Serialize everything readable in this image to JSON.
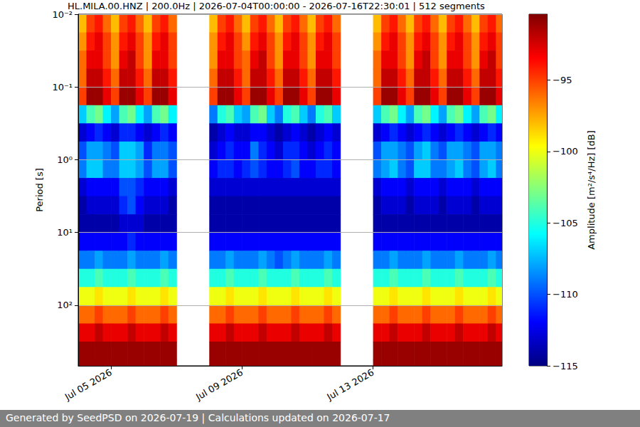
{
  "chart_data": {
    "type": "heatmap",
    "title": "HL.MILA.00.HNZ | 200.0Hz | 2026-07-04T00:00:00 - 2026-07-16T22:30:01 | 512 segments",
    "ylabel": "Period [s]",
    "footer": "Generated by SeedPSD on 2026-07-19 | Calculations updated on 2026-07-17",
    "log": "y",
    "grid": "y",
    "xlim": [
      "2026-07-04T00:00:00",
      "2026-07-16T22:30:01"
    ],
    "xticks": [
      {
        "value": "2026-07-05T00:00:00",
        "label": "Jul 05 2026"
      },
      {
        "value": "2026-07-09T00:00:00",
        "label": "Jul 09 2026"
      },
      {
        "value": "2026-07-13T00:00:00",
        "label": "Jul 13 2026"
      }
    ],
    "ylim": [
      0.01,
      680
    ],
    "yticks": [
      {
        "value": 0.01,
        "label": "10⁻²"
      },
      {
        "value": 0.1,
        "label": "10⁻¹"
      },
      {
        "value": 1,
        "label": "10⁰"
      },
      {
        "value": 10,
        "label": "10¹"
      },
      {
        "value": 100,
        "label": "10²"
      }
    ],
    "colorbar": {
      "label": "Amplitude [m²/s⁴/Hz] [dB]",
      "range": [
        -115,
        -90.4
      ],
      "ticks": [
        {
          "value": -115,
          "label": "−115"
        },
        {
          "value": -110,
          "label": "−110"
        },
        {
          "value": -105,
          "label": "−105"
        },
        {
          "value": -100,
          "label": "−100"
        },
        {
          "value": -95,
          "label": "−95"
        }
      ]
    },
    "period_edges": [
      0.01,
      0.0178,
      0.0316,
      0.0562,
      0.1,
      0.178,
      0.316,
      0.562,
      1,
      1.78,
      3.16,
      5.62,
      10,
      17.8,
      31.6,
      56.2,
      100,
      178,
      316,
      562,
      680
    ],
    "x": [
      "2026-07-04T00:00:00",
      "2026-07-04T06:00:00",
      "2026-07-04T12:00:00",
      "2026-07-04T18:00:00",
      "2026-07-05T00:00:00",
      "2026-07-05T06:00:00",
      "2026-07-05T12:00:00",
      "2026-07-05T18:00:00",
      "2026-07-06T00:00:00",
      "2026-07-06T06:00:00",
      "2026-07-06T12:00:00",
      "2026-07-06T18:00:00",
      "2026-07-07T00:00:00",
      "2026-07-07T06:00:00",
      "2026-07-07T12:00:00",
      "2026-07-07T18:00:00",
      "2026-07-08T00:00:00",
      "2026-07-08T06:00:00",
      "2026-07-08T12:00:00",
      "2026-07-08T18:00:00",
      "2026-07-09T00:00:00",
      "2026-07-09T06:00:00",
      "2026-07-09T12:00:00",
      "2026-07-09T18:00:00",
      "2026-07-10T00:00:00",
      "2026-07-10T06:00:00",
      "2026-07-10T12:00:00",
      "2026-07-10T18:00:00",
      "2026-07-11T00:00:00",
      "2026-07-11T06:00:00",
      "2026-07-11T12:00:00",
      "2026-07-11T18:00:00",
      "2026-07-12T00:00:00",
      "2026-07-12T06:00:00",
      "2026-07-12T12:00:00",
      "2026-07-12T18:00:00",
      "2026-07-13T00:00:00",
      "2026-07-13T06:00:00",
      "2026-07-13T12:00:00",
      "2026-07-13T18:00:00",
      "2026-07-14T00:00:00",
      "2026-07-14T06:00:00",
      "2026-07-14T12:00:00",
      "2026-07-14T18:00:00",
      "2026-07-15T00:00:00",
      "2026-07-15T06:00:00",
      "2026-07-15T12:00:00",
      "2026-07-15T18:00:00",
      "2026-07-16T00:00:00",
      "2026-07-16T06:00:00",
      "2026-07-16T12:00:00",
      "2026-07-16T18:00:00"
    ],
    "cells": [
      [
        -98,
        -97,
        -96,
        -96,
        -95,
        -107,
        -113,
        -110,
        -109,
        -113,
        -114,
        -114,
        -112,
        -109,
        -105,
        -100,
        -96,
        -93,
        -91,
        -91
      ],
      [
        -95,
        -94,
        -93,
        -92,
        -91,
        -104,
        -112,
        -108,
        -107,
        -112,
        -113,
        -114,
        -112,
        -109,
        -105,
        -100,
        -96,
        -93,
        -91,
        -91
      ],
      [
        -94,
        -93,
        -93,
        -92,
        -91,
        -103,
        -111,
        -108,
        -107,
        -112,
        -113,
        -114,
        -112,
        -108,
        -104,
        -99,
        -95,
        -92,
        -91,
        -91
      ],
      [
        -96,
        -95,
        -95,
        -94,
        -93,
        -106,
        -112,
        -109,
        -109,
        -112,
        -113,
        -114,
        -112,
        -109,
        -105,
        -100,
        -96,
        -93,
        -91,
        -91
      ],
      [
        -98,
        -97,
        -97,
        -96,
        -95,
        -108,
        -113,
        -110,
        -109,
        -112,
        -113,
        -114,
        -112,
        -109,
        -105,
        -100,
        -96,
        -93,
        -91,
        -91
      ],
      [
        -95,
        -94,
        -93,
        -92,
        -91,
        -104,
        -111,
        -107,
        -107,
        -110,
        -111,
        -113,
        -112,
        -109,
        -105,
        -100,
        -96,
        -93,
        -91,
        -91
      ],
      [
        -94,
        -93,
        -92,
        -92,
        -91,
        -103,
        -111,
        -107,
        -107,
        -110,
        -110,
        -113,
        -111,
        -108,
        -104,
        -99,
        -95,
        -92,
        -91,
        -91
      ],
      [
        -96,
        -95,
        -95,
        -94,
        -93,
        -106,
        -112,
        -108,
        -108,
        -111,
        -112,
        -113,
        -112,
        -109,
        -105,
        -100,
        -96,
        -93,
        -91,
        -91
      ],
      [
        -98,
        -97,
        -97,
        -96,
        -95,
        -108,
        -113,
        -111,
        -110,
        -112,
        -113,
        -114,
        -112,
        -109,
        -105,
        -100,
        -96,
        -93,
        -91,
        -91
      ],
      [
        -95,
        -94,
        -93,
        -92,
        -91,
        -104,
        -112,
        -109,
        -108,
        -112,
        -113,
        -114,
        -112,
        -109,
        -105,
        -100,
        -96,
        -93,
        -91,
        -91
      ],
      [
        -94,
        -93,
        -93,
        -92,
        -91,
        -103,
        -111,
        -109,
        -108,
        -112,
        -113,
        -114,
        -112,
        -108,
        -104,
        -99,
        -95,
        -92,
        -91,
        -91
      ],
      [
        -96,
        -95,
        -95,
        -94,
        -93,
        -106,
        -112,
        -110,
        -110,
        -113,
        -114,
        -114,
        -112,
        -109,
        -105,
        -100,
        -96,
        -93,
        -91,
        -91
      ],
      null,
      null,
      null,
      null,
      [
        -98,
        -97,
        -97,
        -96,
        -95,
        -109,
        -114,
        -113,
        -112,
        -113,
        -114,
        -114,
        -112,
        -109,
        -105,
        -100,
        -96,
        -93,
        -91,
        -91
      ],
      [
        -95,
        -94,
        -93,
        -92,
        -91,
        -105,
        -113,
        -112,
        -111,
        -113,
        -114,
        -114,
        -112,
        -109,
        -105,
        -100,
        -96,
        -93,
        -91,
        -91
      ],
      [
        -94,
        -93,
        -93,
        -92,
        -91,
        -104,
        -112,
        -111,
        -111,
        -113,
        -114,
        -114,
        -112,
        -108,
        -104,
        -99,
        -95,
        -92,
        -91,
        -91
      ],
      [
        -96,
        -95,
        -95,
        -94,
        -93,
        -107,
        -113,
        -112,
        -112,
        -113,
        -114,
        -114,
        -112,
        -109,
        -105,
        -100,
        -96,
        -93,
        -91,
        -91
      ],
      [
        -98,
        -97,
        -96,
        -96,
        -95,
        -108,
        -113,
        -112,
        -111,
        -113,
        -114,
        -114,
        -112,
        -109,
        -105,
        -100,
        -96,
        -93,
        -91,
        -91
      ],
      [
        -95,
        -94,
        -93,
        -92,
        -91,
        -104,
        -112,
        -109,
        -110,
        -113,
        -114,
        -114,
        -112,
        -109,
        -105,
        -100,
        -96,
        -93,
        -91,
        -91
      ],
      [
        -94,
        -93,
        -92,
        -92,
        -91,
        -103,
        -112,
        -111,
        -111,
        -113,
        -114,
        -114,
        -112,
        -108,
        -104,
        -99,
        -95,
        -92,
        -91,
        -91
      ],
      [
        -96,
        -95,
        -95,
        -94,
        -93,
        -107,
        -113,
        -112,
        -112,
        -113,
        -114,
        -114,
        -112,
        -109,
        -105,
        -100,
        -96,
        -93,
        -91,
        -91
      ],
      [
        -98,
        -97,
        -97,
        -96,
        -95,
        -109,
        -114,
        -113,
        -112,
        -113,
        -114,
        -114,
        -112,
        -110,
        -105,
        -100,
        -96,
        -93,
        -91,
        -91
      ],
      [
        -95,
        -94,
        -93,
        -92,
        -91,
        -105,
        -113,
        -111,
        -111,
        -113,
        -114,
        -114,
        -112,
        -109,
        -105,
        -100,
        -96,
        -93,
        -91,
        -91
      ],
      [
        -94,
        -93,
        -93,
        -92,
        -91,
        -104,
        -112,
        -111,
        -110,
        -113,
        -114,
        -114,
        -112,
        -108,
        -104,
        -99,
        -95,
        -92,
        -91,
        -91
      ],
      [
        -96,
        -95,
        -95,
        -94,
        -93,
        -107,
        -113,
        -112,
        -112,
        -113,
        -114,
        -114,
        -112,
        -109,
        -105,
        -100,
        -96,
        -93,
        -91,
        -91
      ],
      [
        -98,
        -97,
        -97,
        -96,
        -95,
        -109,
        -114,
        -113,
        -112,
        -113,
        -114,
        -114,
        -112,
        -109,
        -105,
        -100,
        -96,
        -93,
        -91,
        -91
      ],
      [
        -95,
        -94,
        -93,
        -92,
        -91,
        -105,
        -113,
        -112,
        -111,
        -113,
        -114,
        -114,
        -112,
        -109,
        -105,
        -100,
        -96,
        -93,
        -91,
        -91
      ],
      [
        -94,
        -93,
        -93,
        -92,
        -91,
        -104,
        -112,
        -111,
        -111,
        -113,
        -114,
        -114,
        -112,
        -108,
        -104,
        -99,
        -95,
        -92,
        -91,
        -91
      ],
      [
        -96,
        -95,
        -95,
        -94,
        -93,
        -107,
        -113,
        -112,
        -112,
        -113,
        -114,
        -114,
        -112,
        -109,
        -105,
        -100,
        -96,
        -93,
        -91,
        -91
      ],
      null,
      null,
      null,
      null,
      [
        -98,
        -97,
        -96,
        -96,
        -95,
        -107,
        -113,
        -110,
        -109,
        -113,
        -114,
        -114,
        -112,
        -109,
        -105,
        -100,
        -96,
        -93,
        -91,
        -91
      ],
      [
        -95,
        -94,
        -93,
        -92,
        -91,
        -104,
        -112,
        -108,
        -108,
        -112,
        -113,
        -114,
        -112,
        -109,
        -105,
        -100,
        -96,
        -93,
        -91,
        -91
      ],
      [
        -94,
        -93,
        -93,
        -92,
        -91,
        -103,
        -111,
        -108,
        -107,
        -112,
        -113,
        -114,
        -112,
        -108,
        -104,
        -99,
        -95,
        -92,
        -91,
        -91
      ],
      [
        -96,
        -95,
        -95,
        -94,
        -93,
        -106,
        -112,
        -109,
        -109,
        -112,
        -113,
        -114,
        -112,
        -109,
        -105,
        -100,
        -96,
        -93,
        -91,
        -91
      ],
      [
        -98,
        -97,
        -97,
        -96,
        -95,
        -108,
        -113,
        -110,
        -110,
        -113,
        -114,
        -114,
        -112,
        -109,
        -105,
        -100,
        -96,
        -93,
        -91,
        -91
      ],
      [
        -95,
        -94,
        -93,
        -92,
        -91,
        -104,
        -112,
        -108,
        -107,
        -112,
        -113,
        -114,
        -112,
        -109,
        -105,
        -100,
        -96,
        -93,
        -91,
        -91
      ],
      [
        -94,
        -93,
        -92,
        -92,
        -91,
        -103,
        -111,
        -107,
        -107,
        -112,
        -113,
        -114,
        -112,
        -108,
        -104,
        -99,
        -95,
        -92,
        -91,
        -91
      ],
      [
        -96,
        -95,
        -95,
        -94,
        -93,
        -106,
        -112,
        -109,
        -109,
        -112,
        -113,
        -114,
        -112,
        -109,
        -105,
        -100,
        -96,
        -93,
        -91,
        -91
      ],
      [
        -98,
        -97,
        -97,
        -96,
        -95,
        -108,
        -113,
        -110,
        -109,
        -113,
        -114,
        -114,
        -112,
        -109,
        -105,
        -100,
        -96,
        -93,
        -91,
        -91
      ],
      [
        -95,
        -94,
        -93,
        -92,
        -91,
        -104,
        -112,
        -108,
        -108,
        -112,
        -113,
        -114,
        -112,
        -109,
        -105,
        -100,
        -96,
        -93,
        -91,
        -91
      ],
      [
        -94,
        -93,
        -93,
        -92,
        -91,
        -103,
        -111,
        -108,
        -107,
        -112,
        -113,
        -114,
        -112,
        -108,
        -104,
        -99,
        -95,
        -92,
        -91,
        -91
      ],
      [
        -96,
        -95,
        -95,
        -94,
        -93,
        -106,
        -112,
        -109,
        -109,
        -112,
        -113,
        -114,
        -112,
        -109,
        -105,
        -100,
        -96,
        -93,
        -91,
        -91
      ],
      [
        -98,
        -97,
        -97,
        -96,
        -95,
        -108,
        -113,
        -110,
        -110,
        -113,
        -114,
        -114,
        -112,
        -109,
        -105,
        -100,
        -96,
        -93,
        -91,
        -91
      ],
      [
        -95,
        -94,
        -93,
        -92,
        -91,
        -104,
        -112,
        -108,
        -108,
        -112,
        -113,
        -114,
        -112,
        -109,
        -105,
        -100,
        -96,
        -93,
        -91,
        -91
      ],
      [
        -94,
        -93,
        -92,
        -92,
        -91,
        -103,
        -111,
        -108,
        -107,
        -112,
        -113,
        -114,
        -112,
        -108,
        -104,
        -99,
        -95,
        -92,
        -91,
        -91
      ],
      [
        -96,
        -95,
        -95,
        -94,
        -93,
        -106,
        -112,
        -109,
        -109,
        -112,
        -113,
        -114,
        -112,
        -109,
        -105,
        -100,
        -96,
        -93,
        -91,
        -91
      ]
    ]
  }
}
